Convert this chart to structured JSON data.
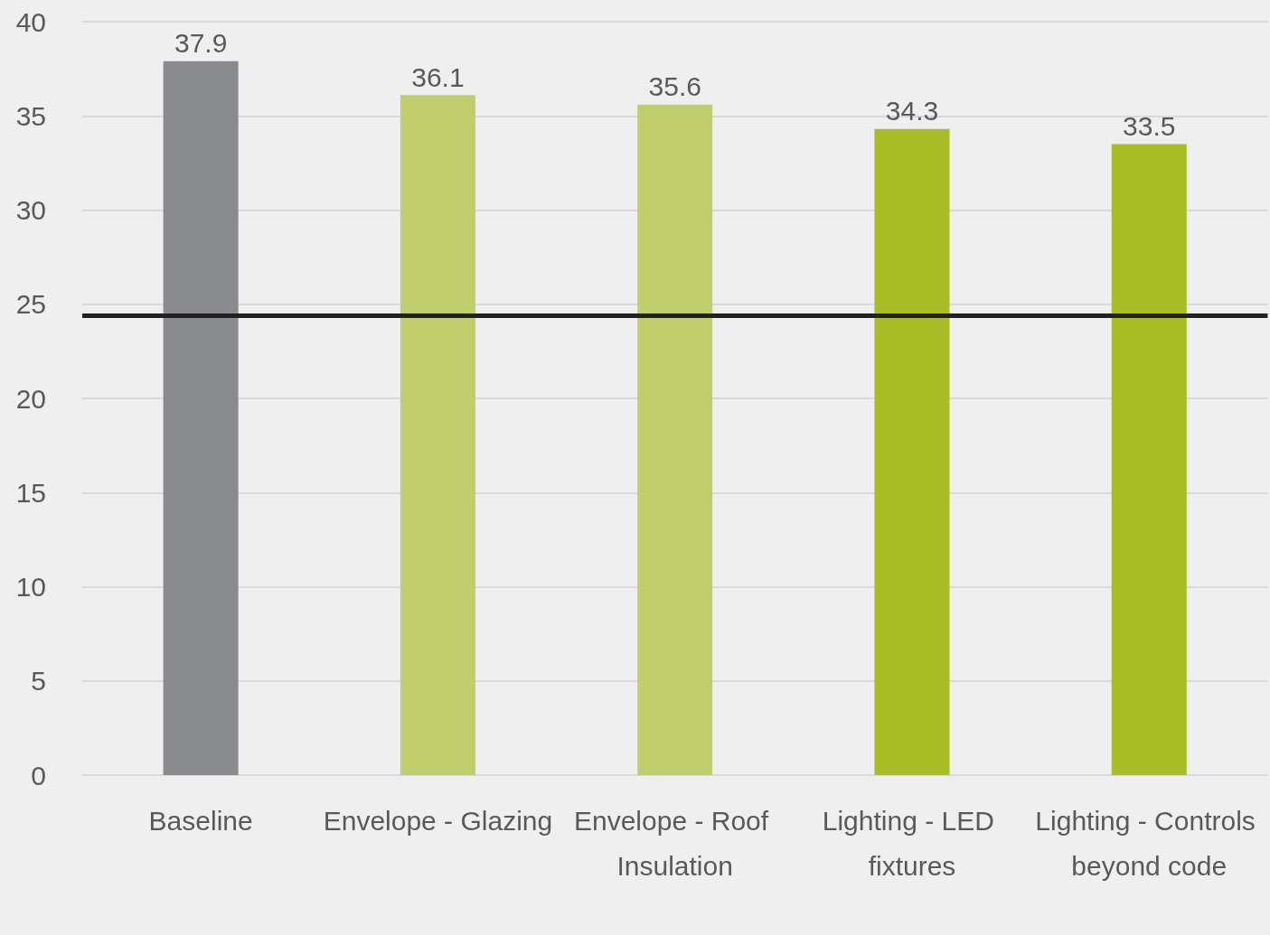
{
  "chart_data": {
    "type": "bar",
    "categories": [
      "Baseline",
      "Envelope - Glazing",
      "Envelope - Roof Insulation",
      "Lighting - LED fixtures",
      "Lighting - Controls beyond code"
    ],
    "values": [
      37.9,
      36.1,
      35.6,
      34.3,
      33.5
    ],
    "colors": [
      "#8a8b8e",
      "#c0cf6c",
      "#c0cf6c",
      "#a9bd25",
      "#a9bd25"
    ],
    "ylim": [
      0,
      40
    ],
    "yticks": [
      0,
      5,
      10,
      15,
      20,
      25,
      30,
      35,
      40
    ],
    "grid": "y",
    "data_labels": true,
    "ref_lines": [
      {
        "axis": "y",
        "value": 24.4,
        "color": "#222222",
        "line_style": "solid"
      }
    ]
  }
}
